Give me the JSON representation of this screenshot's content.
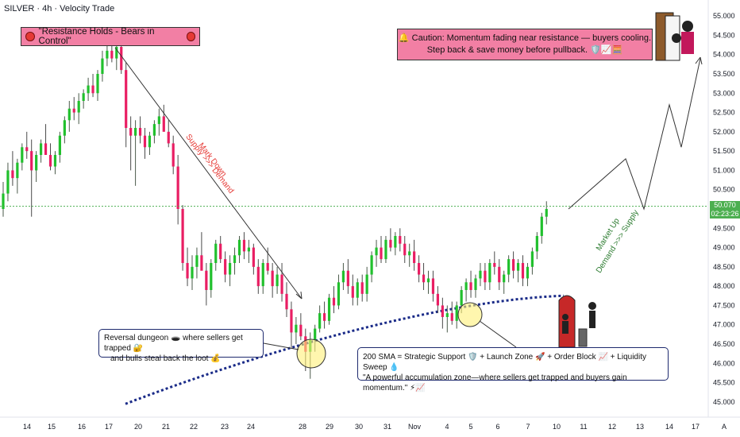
{
  "chart_data": {
    "type": "candlestick",
    "title": "SILVER · 4h · Velocity Trade",
    "y_ticks": [
      "55.000",
      "54.500",
      "54.000",
      "53.500",
      "53.000",
      "52.500",
      "52.000",
      "51.500",
      "51.000",
      "50.500",
      "50.000",
      "49.500",
      "49.000",
      "48.500",
      "48.000",
      "47.500",
      "47.000",
      "46.500",
      "46.000",
      "45.500",
      "45.000"
    ],
    "x_ticks": [
      "14",
      "15",
      "16",
      "17",
      "20",
      "21",
      "22",
      "23",
      "24",
      "28",
      "29",
      "30",
      "31",
      "Nov",
      "4",
      "5",
      "6",
      "7",
      "10",
      "11",
      "12",
      "13",
      "14",
      "17"
    ],
    "ylim": [
      44.75,
      55.25
    ],
    "last_price": "50.070",
    "countdown": "02:23:26",
    "timezone_badge": "A",
    "ohlc": [
      [
        50.0,
        50.7,
        49.8,
        50.4
      ],
      [
        50.4,
        51.2,
        50.2,
        51.0
      ],
      [
        51.0,
        51.5,
        50.6,
        50.8
      ],
      [
        50.8,
        51.3,
        50.4,
        51.2
      ],
      [
        51.2,
        51.7,
        51.0,
        51.6
      ],
      [
        51.6,
        52.0,
        51.3,
        51.5
      ],
      [
        51.5,
        51.8,
        49.8,
        51.0
      ],
      [
        51.0,
        51.5,
        50.7,
        51.4
      ],
      [
        51.4,
        51.8,
        51.2,
        51.7
      ],
      [
        51.7,
        52.2,
        51.5,
        51.4
      ],
      [
        51.4,
        51.7,
        51.0,
        51.1
      ],
      [
        51.1,
        51.5,
        50.9,
        51.4
      ],
      [
        51.4,
        52.0,
        51.2,
        51.9
      ],
      [
        51.9,
        52.4,
        51.7,
        52.3
      ],
      [
        52.3,
        52.8,
        52.0,
        52.6
      ],
      [
        52.6,
        52.9,
        52.3,
        52.5
      ],
      [
        52.5,
        53.0,
        52.2,
        52.8
      ],
      [
        52.8,
        53.1,
        52.6,
        53.0
      ],
      [
        53.0,
        53.4,
        52.8,
        53.2
      ],
      [
        53.2,
        53.5,
        52.9,
        53.0
      ],
      [
        53.0,
        53.6,
        52.8,
        53.5
      ],
      [
        53.5,
        54.1,
        53.3,
        53.9
      ],
      [
        53.9,
        54.3,
        53.7,
        54.1
      ],
      [
        54.1,
        54.3,
        53.8,
        53.9
      ],
      [
        53.9,
        54.3,
        53.6,
        54.2
      ],
      [
        54.2,
        54.4,
        53.5,
        53.6
      ],
      [
        53.6,
        53.8,
        51.6,
        52.1
      ],
      [
        52.1,
        52.4,
        51.0,
        51.9
      ],
      [
        51.9,
        52.3,
        50.6,
        52.1
      ],
      [
        52.1,
        52.4,
        51.7,
        51.9
      ],
      [
        51.9,
        52.1,
        51.3,
        51.6
      ],
      [
        51.6,
        52.0,
        51.4,
        51.9
      ],
      [
        51.9,
        52.3,
        51.7,
        52.2
      ],
      [
        52.2,
        52.6,
        51.9,
        52.4
      ],
      [
        52.4,
        52.7,
        52.1,
        52.0
      ],
      [
        52.0,
        52.3,
        51.6,
        51.7
      ],
      [
        51.7,
        51.9,
        50.9,
        51.1
      ],
      [
        51.1,
        51.4,
        49.6,
        50.0
      ],
      [
        50.0,
        50.1,
        48.4,
        48.6
      ],
      [
        48.6,
        49.0,
        48.0,
        48.2
      ],
      [
        48.2,
        48.8,
        47.9,
        48.5
      ],
      [
        48.5,
        49.0,
        48.2,
        48.8
      ],
      [
        48.8,
        49.4,
        48.5,
        48.4
      ],
      [
        48.4,
        48.6,
        47.5,
        47.9
      ],
      [
        47.9,
        48.7,
        47.7,
        48.6
      ],
      [
        48.6,
        49.2,
        48.4,
        49.1
      ],
      [
        49.1,
        49.3,
        48.6,
        48.7
      ],
      [
        48.7,
        48.9,
        48.1,
        48.3
      ],
      [
        48.3,
        48.8,
        48.0,
        48.6
      ],
      [
        48.6,
        49.0,
        48.3,
        48.8
      ],
      [
        48.8,
        49.3,
        48.6,
        49.2
      ],
      [
        49.2,
        49.4,
        48.7,
        48.9
      ],
      [
        48.9,
        49.2,
        48.6,
        49.0
      ],
      [
        49.0,
        49.1,
        48.3,
        48.5
      ],
      [
        48.5,
        48.7,
        47.8,
        48.0
      ],
      [
        48.0,
        48.7,
        47.8,
        48.6
      ],
      [
        48.6,
        49.0,
        48.3,
        48.4
      ],
      [
        48.4,
        48.6,
        47.7,
        48.0
      ],
      [
        48.0,
        48.5,
        47.8,
        48.3
      ],
      [
        48.3,
        48.6,
        47.6,
        47.8
      ],
      [
        47.8,
        48.1,
        47.2,
        47.4
      ],
      [
        47.4,
        47.6,
        46.4,
        46.8
      ],
      [
        46.8,
        47.2,
        46.5,
        47.0
      ],
      [
        47.0,
        47.3,
        46.6,
        46.7
      ],
      [
        46.7,
        46.9,
        45.8,
        46.3
      ],
      [
        46.3,
        46.8,
        45.6,
        46.6
      ],
      [
        46.6,
        47.0,
        46.3,
        46.9
      ],
      [
        46.9,
        47.5,
        46.8,
        47.3
      ],
      [
        47.3,
        47.6,
        46.9,
        47.1
      ],
      [
        47.1,
        47.8,
        47.0,
        47.7
      ],
      [
        47.7,
        48.0,
        47.3,
        47.5
      ],
      [
        47.5,
        48.3,
        47.4,
        48.1
      ],
      [
        48.1,
        48.6,
        47.9,
        48.4
      ],
      [
        48.4,
        48.7,
        47.8,
        48.0
      ],
      [
        48.0,
        48.3,
        47.5,
        47.7
      ],
      [
        47.7,
        48.2,
        47.5,
        48.1
      ],
      [
        48.1,
        48.3,
        47.6,
        47.8
      ],
      [
        47.8,
        48.5,
        47.6,
        48.3
      ],
      [
        48.3,
        48.9,
        48.1,
        48.8
      ],
      [
        48.8,
        49.2,
        48.5,
        49.0
      ],
      [
        49.0,
        49.3,
        48.6,
        48.7
      ],
      [
        48.7,
        49.3,
        48.6,
        49.2
      ],
      [
        49.2,
        49.5,
        48.9,
        49.0
      ],
      [
        49.0,
        49.4,
        48.8,
        49.3
      ],
      [
        49.3,
        49.5,
        48.9,
        49.1
      ],
      [
        49.1,
        49.3,
        48.6,
        48.8
      ],
      [
        48.8,
        49.1,
        48.5,
        48.9
      ],
      [
        48.9,
        49.2,
        48.4,
        48.6
      ],
      [
        48.6,
        48.8,
        48.1,
        48.3
      ],
      [
        48.3,
        48.6,
        47.9,
        48.1
      ],
      [
        48.1,
        48.4,
        47.8,
        48.2
      ],
      [
        48.2,
        48.4,
        47.6,
        47.8
      ],
      [
        47.8,
        48.0,
        47.3,
        47.5
      ],
      [
        47.5,
        47.7,
        46.9,
        47.2
      ],
      [
        47.2,
        47.5,
        46.8,
        47.3
      ],
      [
        47.3,
        47.6,
        47.0,
        47.1
      ],
      [
        47.1,
        47.6,
        46.9,
        47.5
      ],
      [
        47.5,
        48.0,
        47.3,
        47.9
      ],
      [
        47.9,
        48.2,
        47.6,
        48.1
      ],
      [
        48.1,
        48.4,
        47.7,
        47.9
      ],
      [
        47.9,
        48.3,
        47.7,
        48.2
      ],
      [
        48.2,
        48.6,
        48.0,
        48.4
      ],
      [
        48.4,
        48.6,
        47.9,
        48.1
      ],
      [
        48.1,
        48.7,
        47.9,
        48.6
      ],
      [
        48.6,
        48.9,
        48.3,
        48.5
      ],
      [
        48.5,
        48.7,
        47.9,
        48.1
      ],
      [
        48.1,
        48.4,
        47.8,
        48.3
      ],
      [
        48.3,
        48.8,
        48.1,
        48.7
      ],
      [
        48.7,
        48.9,
        48.2,
        48.4
      ],
      [
        48.4,
        48.7,
        48.1,
        48.6
      ],
      [
        48.6,
        48.8,
        48.0,
        48.2
      ],
      [
        48.2,
        48.6,
        48.0,
        48.5
      ],
      [
        48.5,
        49.0,
        48.3,
        48.9
      ],
      [
        48.9,
        49.4,
        48.7,
        49.3
      ],
      [
        49.3,
        49.9,
        49.1,
        49.8
      ],
      [
        49.8,
        50.2,
        49.6,
        50.0
      ]
    ],
    "colors": {
      "up": "#26a69a",
      "up_bright": "#21c02d",
      "down": "#e91e63",
      "sma": "#1a2b88",
      "price_line": "#4caf50"
    },
    "sma200_name": "200 SMA",
    "projection": [
      [
        50.0,
        "start"
      ],
      [
        51.3,
        ""
      ],
      [
        50.0,
        ""
      ],
      [
        52.7,
        ""
      ],
      [
        51.6,
        ""
      ],
      [
        53.9,
        ""
      ]
    ]
  },
  "annotations": {
    "resistance_banner": "\"Resistance Holds - Bears in Control\"",
    "caution_line1": "🔔 Caution: Momentum fading near resistance — buyers cooling.",
    "caution_line2": "Step back & save money before pullback. 🛡️📈🧮",
    "mark_down": "Mark Down",
    "supply_demand": "Supply >>> Demand",
    "market_up": "Market Up",
    "demand_supply": "Demand >>> Supply",
    "reversal_line1": "Reversal dungeon 🕳️ where sellers get trapped 🔐",
    "reversal_line2": "and bulls steal back the loot 💰",
    "sma_line1": "200 SMA = Strategic Support 🛡️ + Launch Zone 🚀 + Order Block 📈 + Liquidity Sweep 💧",
    "sma_line2": "\"A powerful accumulation zone—where sellers get trapped and buyers gain momentum.\" ⚡📈"
  }
}
